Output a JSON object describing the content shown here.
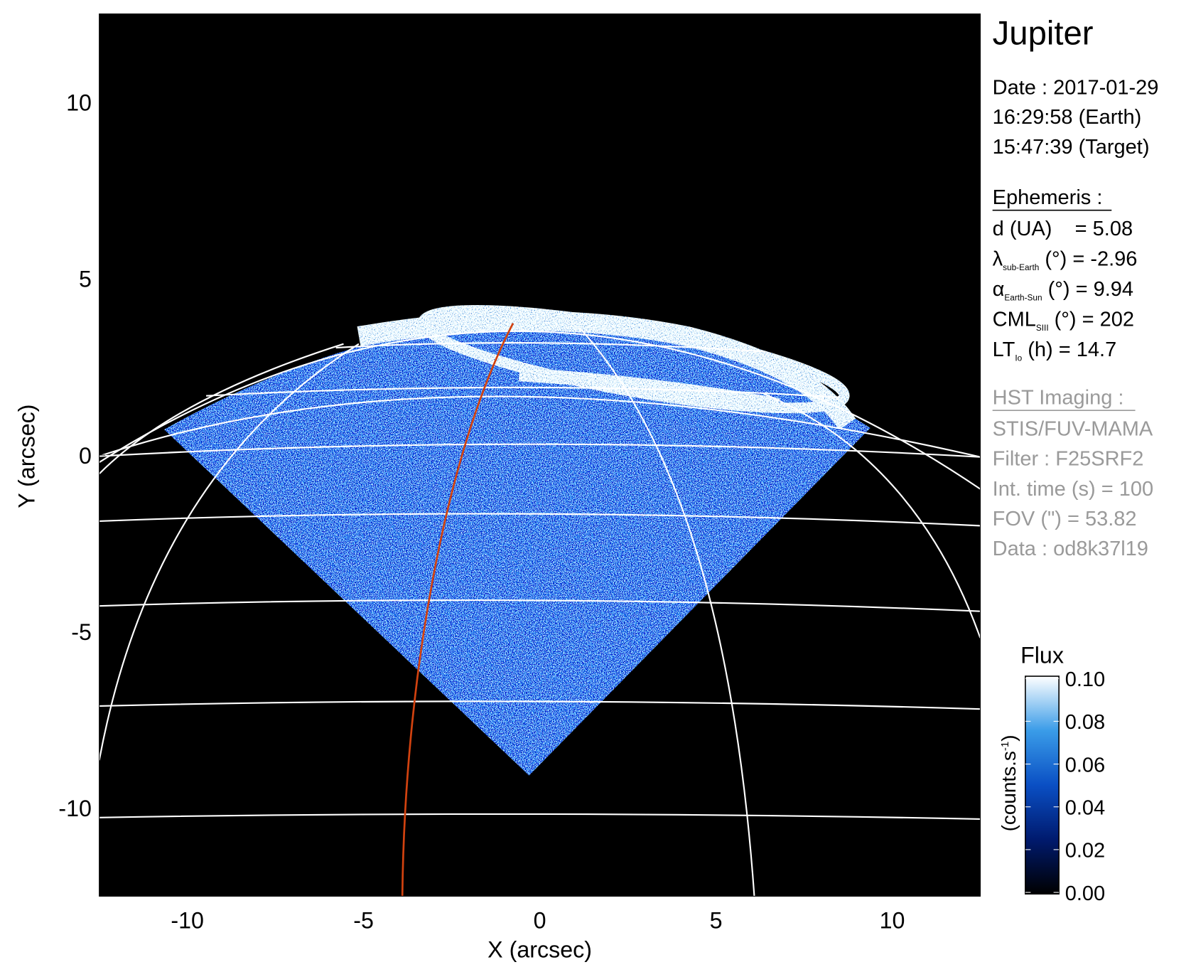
{
  "chart_data": {
    "type": "image",
    "x_label": "X (arcsec)",
    "y_label": "Y (arcsec)",
    "xlim": [
      -12.5,
      12.5
    ],
    "ylim": [
      -12.5,
      12.5
    ],
    "xticks": [
      -10,
      -5,
      0,
      5,
      10
    ],
    "yticks": [
      -10,
      -5,
      0,
      5,
      10
    ],
    "colorbar": {
      "title": "Flux",
      "label": {
        "prefix": "(counts.s",
        "sup": "-1",
        "suffix": ")"
      },
      "lim": [
        0,
        0.1
      ],
      "ticks": [
        {
          "value": 0,
          "label": "0.00"
        },
        {
          "value": 0.02,
          "label": "0.02"
        },
        {
          "value": 0.04,
          "label": "0.04"
        },
        {
          "value": 0.06,
          "label": "0.06"
        },
        {
          "value": 0.08,
          "label": "0.08"
        },
        {
          "value": 0.1,
          "label": "0.10"
        }
      ],
      "colormap": [
        "#000000",
        "#001a6e",
        "#0a4fc4",
        "#3a9ce8",
        "#ffffff"
      ]
    },
    "panel": {
      "target": "Jupiter",
      "date_lines": [
        "Date : 2017-01-29",
        "16:29:58 (Earth)",
        "15:47:39 (Target)"
      ],
      "ephemeris_title": "Ephemeris :",
      "ephemeris": [
        {
          "main": "d (UA)    = 5.08"
        },
        {
          "main": "λ",
          "sub": "sub-Earth",
          "rest": " (°) = -2.96"
        },
        {
          "main": "α",
          "sub": "Earth-Sun",
          "rest": " (°) = 9.94"
        },
        {
          "main": "CML",
          "sub": "SIII",
          "rest": " (°) = 202"
        },
        {
          "main": "LT",
          "sub": "Io",
          "rest": " (h) = 14.7"
        }
      ],
      "imaging_title": "HST Imaging :",
      "imaging": [
        "STIS/FUV-MAMA",
        "Filter : F25SRF2",
        "Int. time (s) = 100",
        "FOV (\") = 53.82",
        "Data : od8k37l19"
      ]
    }
  }
}
